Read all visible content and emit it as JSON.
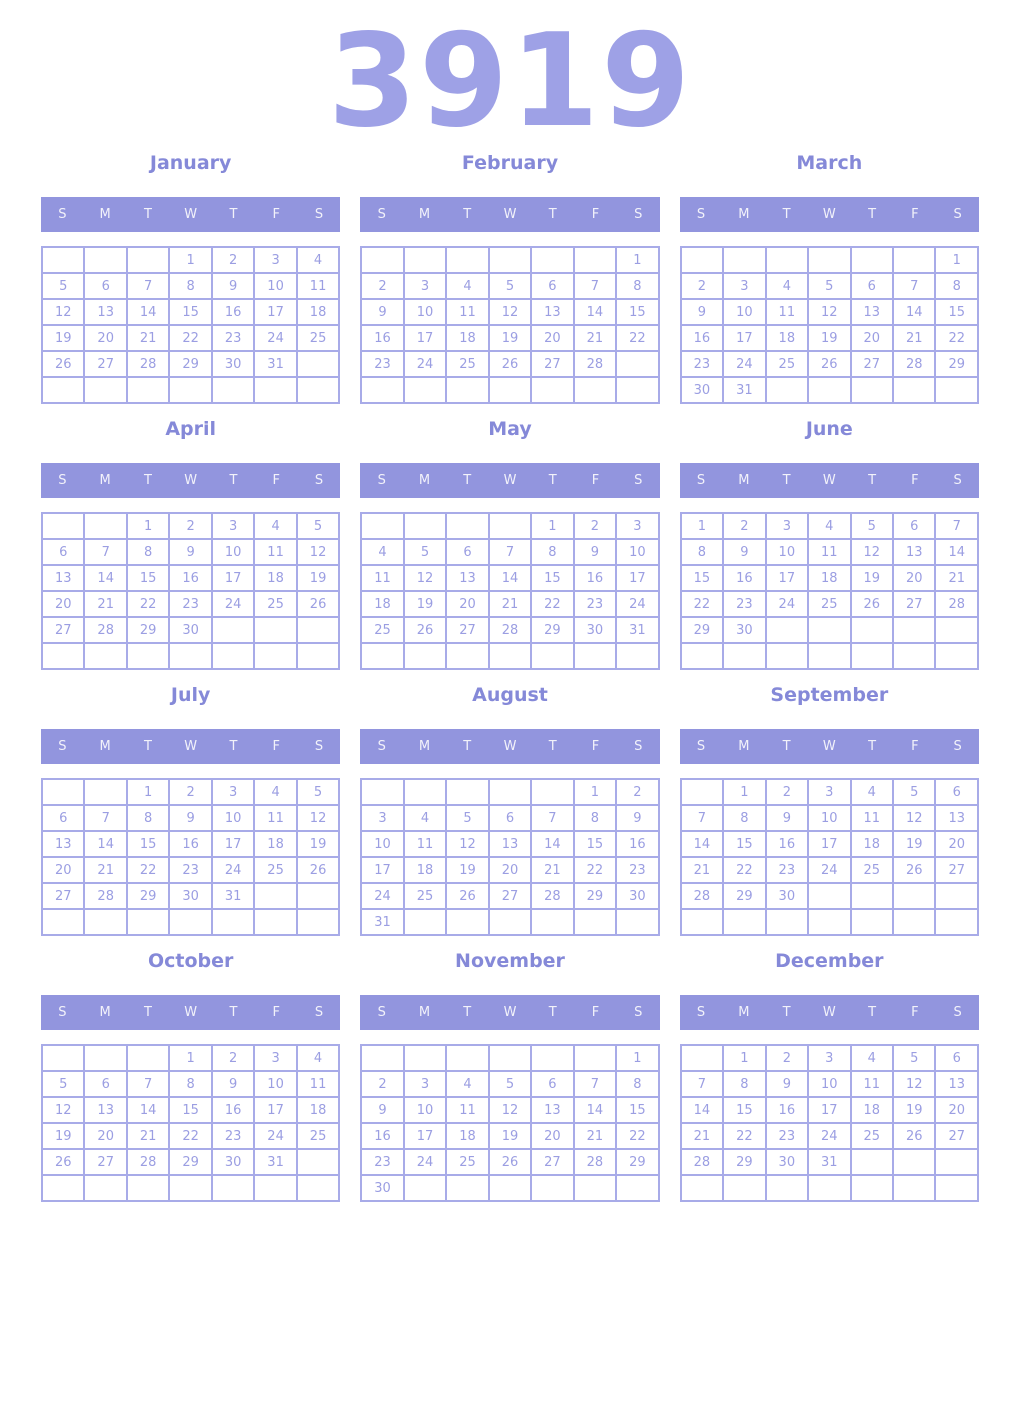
{
  "year": "3919",
  "weekday_headers": [
    "S",
    "M",
    "T",
    "W",
    "T",
    "F",
    "S"
  ],
  "colors": {
    "accent_band": "#9295DE",
    "band_text": "#F2F2FA",
    "month_title": "#8589D8",
    "year_text": "#9EA1E6",
    "date_text": "#9B9EE2",
    "grid_border": "#A8ABE8",
    "background": "#FFFFFF"
  },
  "months": [
    {
      "name": "January",
      "weeks": [
        [
          "",
          "",
          "",
          "1",
          "2",
          "3",
          "4"
        ],
        [
          "5",
          "6",
          "7",
          "8",
          "9",
          "10",
          "11"
        ],
        [
          "12",
          "13",
          "14",
          "15",
          "16",
          "17",
          "18"
        ],
        [
          "19",
          "20",
          "21",
          "22",
          "23",
          "24",
          "25"
        ],
        [
          "26",
          "27",
          "28",
          "29",
          "30",
          "31",
          ""
        ],
        [
          "",
          "",
          "",
          "",
          "",
          "",
          ""
        ]
      ]
    },
    {
      "name": "February",
      "weeks": [
        [
          "",
          "",
          "",
          "",
          "",
          "",
          "1"
        ],
        [
          "2",
          "3",
          "4",
          "5",
          "6",
          "7",
          "8"
        ],
        [
          "9",
          "10",
          "11",
          "12",
          "13",
          "14",
          "15"
        ],
        [
          "16",
          "17",
          "18",
          "19",
          "20",
          "21",
          "22"
        ],
        [
          "23",
          "24",
          "25",
          "26",
          "27",
          "28",
          ""
        ],
        [
          "",
          "",
          "",
          "",
          "",
          "",
          ""
        ]
      ]
    },
    {
      "name": "March",
      "weeks": [
        [
          "",
          "",
          "",
          "",
          "",
          "",
          "1"
        ],
        [
          "2",
          "3",
          "4",
          "5",
          "6",
          "7",
          "8"
        ],
        [
          "9",
          "10",
          "11",
          "12",
          "13",
          "14",
          "15"
        ],
        [
          "16",
          "17",
          "18",
          "19",
          "20",
          "21",
          "22"
        ],
        [
          "23",
          "24",
          "25",
          "26",
          "27",
          "28",
          "29"
        ],
        [
          "30",
          "31",
          "",
          "",
          "",
          "",
          ""
        ]
      ]
    },
    {
      "name": "April",
      "weeks": [
        [
          "",
          "",
          "1",
          "2",
          "3",
          "4",
          "5"
        ],
        [
          "6",
          "7",
          "8",
          "9",
          "10",
          "11",
          "12"
        ],
        [
          "13",
          "14",
          "15",
          "16",
          "17",
          "18",
          "19"
        ],
        [
          "20",
          "21",
          "22",
          "23",
          "24",
          "25",
          "26"
        ],
        [
          "27",
          "28",
          "29",
          "30",
          "",
          "",
          ""
        ],
        [
          "",
          "",
          "",
          "",
          "",
          "",
          ""
        ]
      ]
    },
    {
      "name": "May",
      "weeks": [
        [
          "",
          "",
          "",
          "",
          "1",
          "2",
          "3"
        ],
        [
          "4",
          "5",
          "6",
          "7",
          "8",
          "9",
          "10"
        ],
        [
          "11",
          "12",
          "13",
          "14",
          "15",
          "16",
          "17"
        ],
        [
          "18",
          "19",
          "20",
          "21",
          "22",
          "23",
          "24"
        ],
        [
          "25",
          "26",
          "27",
          "28",
          "29",
          "30",
          "31"
        ],
        [
          "",
          "",
          "",
          "",
          "",
          "",
          ""
        ]
      ]
    },
    {
      "name": "June",
      "weeks": [
        [
          "1",
          "2",
          "3",
          "4",
          "5",
          "6",
          "7"
        ],
        [
          "8",
          "9",
          "10",
          "11",
          "12",
          "13",
          "14"
        ],
        [
          "15",
          "16",
          "17",
          "18",
          "19",
          "20",
          "21"
        ],
        [
          "22",
          "23",
          "24",
          "25",
          "26",
          "27",
          "28"
        ],
        [
          "29",
          "30",
          "",
          "",
          "",
          "",
          ""
        ],
        [
          "",
          "",
          "",
          "",
          "",
          "",
          ""
        ]
      ]
    },
    {
      "name": "July",
      "weeks": [
        [
          "",
          "",
          "1",
          "2",
          "3",
          "4",
          "5"
        ],
        [
          "6",
          "7",
          "8",
          "9",
          "10",
          "11",
          "12"
        ],
        [
          "13",
          "14",
          "15",
          "16",
          "17",
          "18",
          "19"
        ],
        [
          "20",
          "21",
          "22",
          "23",
          "24",
          "25",
          "26"
        ],
        [
          "27",
          "28",
          "29",
          "30",
          "31",
          "",
          ""
        ],
        [
          "",
          "",
          "",
          "",
          "",
          "",
          ""
        ]
      ]
    },
    {
      "name": "August",
      "weeks": [
        [
          "",
          "",
          "",
          "",
          "",
          "1",
          "2"
        ],
        [
          "3",
          "4",
          "5",
          "6",
          "7",
          "8",
          "9"
        ],
        [
          "10",
          "11",
          "12",
          "13",
          "14",
          "15",
          "16"
        ],
        [
          "17",
          "18",
          "19",
          "20",
          "21",
          "22",
          "23"
        ],
        [
          "24",
          "25",
          "26",
          "27",
          "28",
          "29",
          "30"
        ],
        [
          "31",
          "",
          "",
          "",
          "",
          "",
          ""
        ]
      ]
    },
    {
      "name": "September",
      "weeks": [
        [
          "",
          "1",
          "2",
          "3",
          "4",
          "5",
          "6"
        ],
        [
          "7",
          "8",
          "9",
          "10",
          "11",
          "12",
          "13"
        ],
        [
          "14",
          "15",
          "16",
          "17",
          "18",
          "19",
          "20"
        ],
        [
          "21",
          "22",
          "23",
          "24",
          "25",
          "26",
          "27"
        ],
        [
          "28",
          "29",
          "30",
          "",
          "",
          "",
          ""
        ],
        [
          "",
          "",
          "",
          "",
          "",
          "",
          ""
        ]
      ]
    },
    {
      "name": "October",
      "weeks": [
        [
          "",
          "",
          "",
          "1",
          "2",
          "3",
          "4"
        ],
        [
          "5",
          "6",
          "7",
          "8",
          "9",
          "10",
          "11"
        ],
        [
          "12",
          "13",
          "14",
          "15",
          "16",
          "17",
          "18"
        ],
        [
          "19",
          "20",
          "21",
          "22",
          "23",
          "24",
          "25"
        ],
        [
          "26",
          "27",
          "28",
          "29",
          "30",
          "31",
          ""
        ],
        [
          "",
          "",
          "",
          "",
          "",
          "",
          ""
        ]
      ]
    },
    {
      "name": "November",
      "weeks": [
        [
          "",
          "",
          "",
          "",
          "",
          "",
          "1"
        ],
        [
          "2",
          "3",
          "4",
          "5",
          "6",
          "7",
          "8"
        ],
        [
          "9",
          "10",
          "11",
          "12",
          "13",
          "14",
          "15"
        ],
        [
          "16",
          "17",
          "18",
          "19",
          "20",
          "21",
          "22"
        ],
        [
          "23",
          "24",
          "25",
          "26",
          "27",
          "28",
          "29"
        ],
        [
          "30",
          "",
          "",
          "",
          "",
          "",
          ""
        ]
      ]
    },
    {
      "name": "December",
      "weeks": [
        [
          "",
          "1",
          "2",
          "3",
          "4",
          "5",
          "6"
        ],
        [
          "7",
          "8",
          "9",
          "10",
          "11",
          "12",
          "13"
        ],
        [
          "14",
          "15",
          "16",
          "17",
          "18",
          "19",
          "20"
        ],
        [
          "21",
          "22",
          "23",
          "24",
          "25",
          "26",
          "27"
        ],
        [
          "28",
          "29",
          "30",
          "31",
          "",
          "",
          ""
        ],
        [
          "",
          "",
          "",
          "",
          "",
          "",
          ""
        ]
      ]
    }
  ]
}
